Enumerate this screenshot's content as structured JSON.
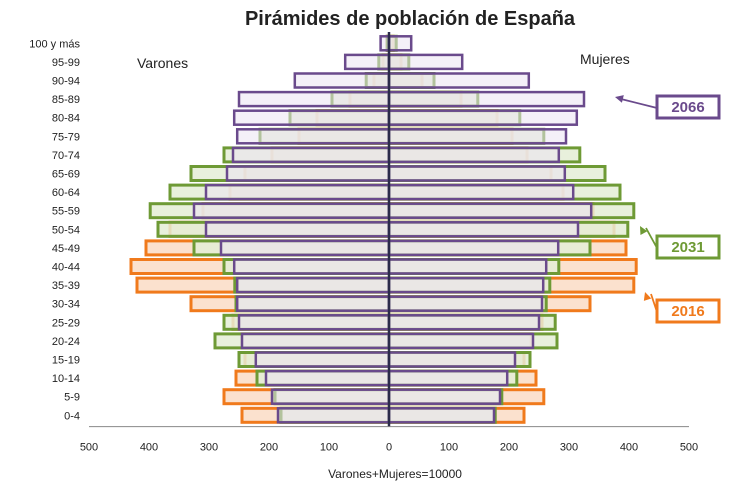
{
  "chart_data": {
    "type": "bar",
    "subtype": "population-pyramid",
    "title": "Pirámides de población de España",
    "left_label": "Varones",
    "right_label": "Mujeres",
    "xlabel": "Varones+Mujeres=10000",
    "xlim": [
      -500,
      500
    ],
    "xticks": [
      500,
      400,
      300,
      200,
      100,
      0,
      100,
      200,
      300,
      400,
      500
    ],
    "categories": [
      "100 y más",
      "95-99",
      "90-94",
      "85-89",
      "80-84",
      "75-79",
      "70-74",
      "65-69",
      "60-64",
      "55-59",
      "50-54",
      "45-49",
      "40-44",
      "35-39",
      "30-34",
      "25-29",
      "20-24",
      "15-19",
      "10-14",
      "5-9",
      "0-4"
    ],
    "series": [
      {
        "name": "2066",
        "color": "#6a4a8c",
        "fill": "#ebe3f3",
        "men": [
          14,
          73,
          157,
          250,
          258,
          253,
          260,
          270,
          305,
          325,
          305,
          280,
          258,
          253,
          253,
          250,
          245,
          222,
          205,
          195,
          185
        ],
        "women": [
          37,
          122,
          233,
          325,
          313,
          295,
          283,
          293,
          307,
          337,
          315,
          282,
          262,
          257,
          255,
          250,
          240,
          210,
          197,
          185,
          175
        ]
      },
      {
        "name": "2031",
        "color": "#6e9a35",
        "fill": "#e4edd6",
        "men": [
          3,
          17,
          38,
          95,
          165,
          215,
          275,
          330,
          365,
          398,
          385,
          325,
          275,
          257,
          255,
          275,
          290,
          250,
          220,
          190,
          180
        ],
        "women": [
          12,
          33,
          75,
          148,
          218,
          258,
          318,
          360,
          385,
          408,
          398,
          335,
          283,
          268,
          262,
          277,
          280,
          235,
          213,
          188,
          177
        ]
      },
      {
        "name": "2016",
        "color": "#f07a1c",
        "fill": "#fadcc6",
        "men": [
          3,
          10,
          25,
          65,
          120,
          150,
          195,
          240,
          265,
          310,
          365,
          405,
          430,
          420,
          330,
          260,
          245,
          240,
          255,
          275,
          245
        ],
        "women": [
          7,
          20,
          55,
          120,
          180,
          205,
          230,
          270,
          290,
          340,
          375,
          395,
          412,
          408,
          335,
          255,
          237,
          225,
          245,
          258,
          225
        ]
      }
    ],
    "callouts": [
      "2066",
      "2031",
      "2016"
    ],
    "grid": false,
    "legend": "callouts-right"
  }
}
